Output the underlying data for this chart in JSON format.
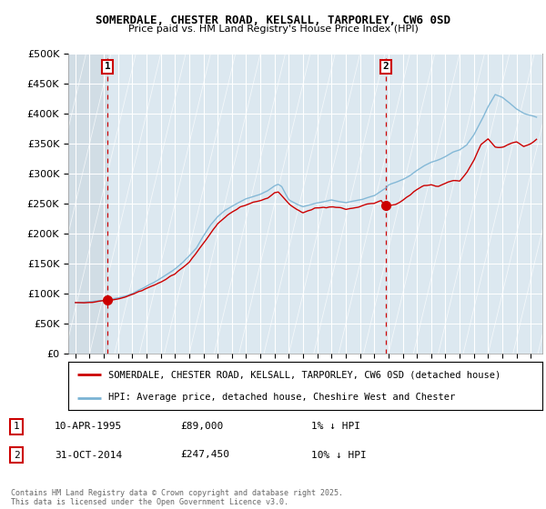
{
  "title1": "SOMERDALE, CHESTER ROAD, KELSALL, TARPORLEY, CW6 0SD",
  "title2": "Price paid vs. HM Land Registry's House Price Index (HPI)",
  "ylim": [
    0,
    500000
  ],
  "sale1_date": "10-APR-1995",
  "sale1_price": 89000,
  "sale1_label": "1% ↓ HPI",
  "sale1_year": 1995.27,
  "sale2_date": "31-OCT-2014",
  "sale2_price": 247450,
  "sale2_label": "10% ↓ HPI",
  "sale2_year": 2014.83,
  "legend_line1": "SOMERDALE, CHESTER ROAD, KELSALL, TARPORLEY, CW6 0SD (detached house)",
  "legend_line2": "HPI: Average price, detached house, Cheshire West and Chester",
  "footer": "Contains HM Land Registry data © Crown copyright and database right 2025.\nThis data is licensed under the Open Government Licence v3.0.",
  "hpi_color": "#7ab3d4",
  "price_color": "#cc0000",
  "grid_color": "#c8d8e8",
  "bg_color": "#dce8f0",
  "hatch_color": "#c8d4dc"
}
